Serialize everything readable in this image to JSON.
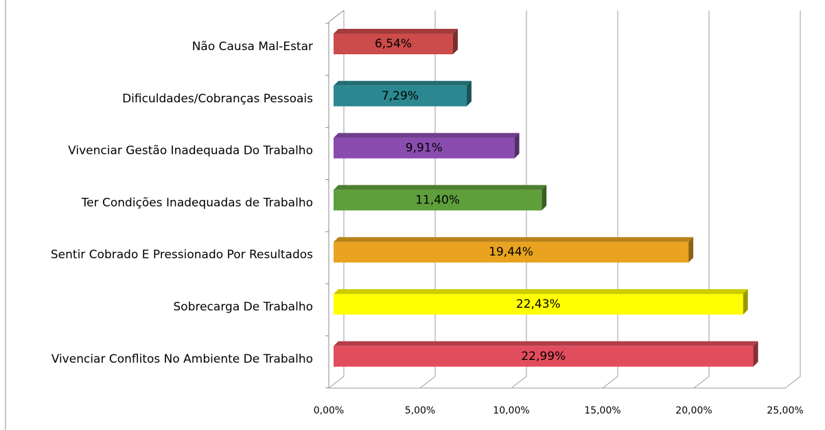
{
  "chart_data": {
    "type": "bar",
    "orientation": "horizontal",
    "categories": [
      "Não Causa Mal-Estar",
      "Dificuldades/Cobranças Pessoais",
      "Vivenciar Gestão Inadequada Do Trabalho",
      "Ter Condições Inadequadas de Trabalho",
      "Sentir Cobrado E Pressionado Por Resultados",
      "Sobrecarga De Trabalho",
      "Vivenciar Conflitos No Ambiente De Trabalho"
    ],
    "values": [
      6.54,
      7.29,
      9.91,
      11.4,
      19.44,
      22.43,
      22.99
    ],
    "value_labels": [
      "6,54%",
      "7,29%",
      "9,91%",
      "11,40%",
      "19,44%",
      "22,43%",
      "22,99%"
    ],
    "colors": [
      "#cc4b4b",
      "#2b8891",
      "#8a4cae",
      "#5f9f3b",
      "#e9a320",
      "#ffff00",
      "#e24d5d"
    ],
    "xlim": [
      0,
      25
    ],
    "xticks": [
      {
        "value": 0,
        "label": "0,00%"
      },
      {
        "value": 5,
        "label": "5,00%"
      },
      {
        "value": 10,
        "label": "10,00%"
      },
      {
        "value": 15,
        "label": "15,00%"
      },
      {
        "value": 20,
        "label": "20,00%"
      },
      {
        "value": 25,
        "label": "25,00%"
      }
    ],
    "grid": true
  }
}
